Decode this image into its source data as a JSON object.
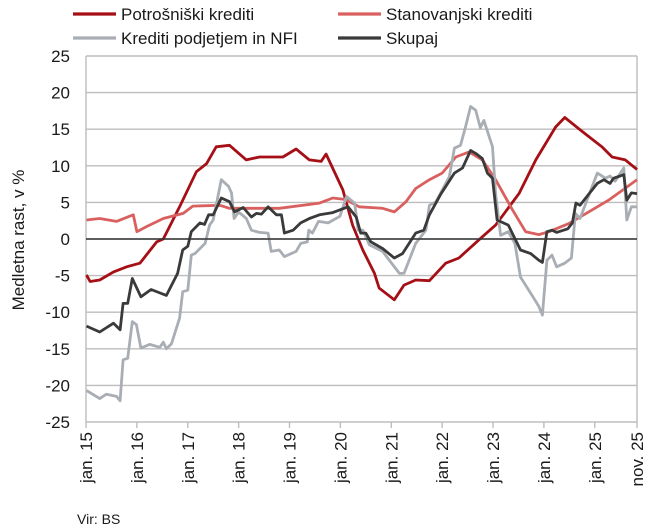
{
  "chart_data": {
    "type": "line",
    "ylabel": "Medletna rast, v %",
    "source": "Vir: BS",
    "ylim": [
      -25,
      25
    ],
    "yticks": [
      25,
      20,
      15,
      10,
      5,
      0,
      -5,
      -10,
      -15,
      -20,
      -25
    ],
    "ytick_labels": [
      "25",
      "20",
      "15",
      "10",
      "5",
      "0",
      "-5",
      "-10",
      "-15",
      "-20",
      "-25"
    ],
    "xlim": [
      2015.0,
      2025.83
    ],
    "xticks": [
      2015,
      2016,
      2017,
      2018,
      2019,
      2020,
      2021,
      2022,
      2023,
      2024,
      2025,
      2025.83
    ],
    "xtick_labels": [
      "jan. 15",
      "jan. 16",
      "jan. 17",
      "jan. 18",
      "jan. 19",
      "jan. 20",
      "jan. 21",
      "jan. 22",
      "jan. 23",
      "jan. 24",
      "jan. 25",
      "nov. 25"
    ],
    "grid": true,
    "legend_position": "top",
    "series": [
      {
        "name": "Potrošniški krediti",
        "color": "#a50f15",
        "points": [
          [
            2015.01,
            -4.9
          ],
          [
            2015.08,
            -5.8
          ],
          [
            2015.27,
            -5.6
          ],
          [
            2015.54,
            -4.5
          ],
          [
            2015.8,
            -3.8
          ],
          [
            2016.06,
            -3.3
          ],
          [
            2016.39,
            -0.4
          ],
          [
            2016.52,
            0
          ],
          [
            2016.84,
            4.4
          ],
          [
            2017.17,
            9.2
          ],
          [
            2017.37,
            10.3
          ],
          [
            2017.56,
            12.6
          ],
          [
            2017.82,
            12.8
          ],
          [
            2018.15,
            10.8
          ],
          [
            2018.41,
            11.2
          ],
          [
            2018.87,
            11.2
          ],
          [
            2019.13,
            12.3
          ],
          [
            2019.39,
            10.8
          ],
          [
            2019.62,
            10.6
          ],
          [
            2019.72,
            11.6
          ],
          [
            2020.05,
            6.7
          ],
          [
            2020.24,
            1.9
          ],
          [
            2020.44,
            -1.5
          ],
          [
            2020.67,
            -4.7
          ],
          [
            2020.76,
            -6.7
          ],
          [
            2021.06,
            -8.3
          ],
          [
            2021.25,
            -6.3
          ],
          [
            2021.48,
            -5.6
          ],
          [
            2021.75,
            -5.7
          ],
          [
            2022.07,
            -3.3
          ],
          [
            2022.33,
            -2.6
          ],
          [
            2022.79,
            0.3
          ],
          [
            2023.05,
            1.9
          ],
          [
            2023.51,
            6.2
          ],
          [
            2023.84,
            10.8
          ],
          [
            2024.23,
            15.3
          ],
          [
            2024.41,
            16.6
          ],
          [
            2024.75,
            14.7
          ],
          [
            2025.14,
            12.6
          ],
          [
            2025.34,
            11.2
          ],
          [
            2025.6,
            10.8
          ],
          [
            2025.83,
            9.5
          ]
        ]
      },
      {
        "name": "Stanovanjski krediti",
        "color": "#d9605f",
        "points": [
          [
            2015.01,
            2.6
          ],
          [
            2015.27,
            2.8
          ],
          [
            2015.6,
            2.4
          ],
          [
            2015.93,
            3.3
          ],
          [
            2016.0,
            1.0
          ],
          [
            2016.19,
            1.7
          ],
          [
            2016.52,
            2.8
          ],
          [
            2016.91,
            3.5
          ],
          [
            2017.1,
            4.5
          ],
          [
            2017.63,
            4.6
          ],
          [
            2017.82,
            4.2
          ],
          [
            2018.8,
            4.2
          ],
          [
            2019.59,
            4.9
          ],
          [
            2019.85,
            5.6
          ],
          [
            2020.1,
            5.4
          ],
          [
            2020.37,
            4.4
          ],
          [
            2020.83,
            4.2
          ],
          [
            2021.06,
            3.7
          ],
          [
            2021.29,
            5.1
          ],
          [
            2021.48,
            6.9
          ],
          [
            2021.75,
            8.1
          ],
          [
            2022.0,
            9.0
          ],
          [
            2022.27,
            11.2
          ],
          [
            2022.53,
            11.9
          ],
          [
            2022.79,
            10.8
          ],
          [
            2023.05,
            8.1
          ],
          [
            2023.38,
            4.0
          ],
          [
            2023.64,
            1.0
          ],
          [
            2023.9,
            0.6
          ],
          [
            2024.1,
            1.0
          ],
          [
            2024.49,
            2.1
          ],
          [
            2024.88,
            3.7
          ],
          [
            2025.27,
            5.3
          ],
          [
            2025.83,
            8.1
          ]
        ]
      },
      {
        "name": "Krediti podjetjem in NFI",
        "color": "#a9aeb4",
        "points": [
          [
            2015.01,
            -20.7
          ],
          [
            2015.27,
            -21.8
          ],
          [
            2015.4,
            -21.2
          ],
          [
            2015.6,
            -21.5
          ],
          [
            2015.67,
            -22.1
          ],
          [
            2015.73,
            -16.5
          ],
          [
            2015.82,
            -16.3
          ],
          [
            2015.91,
            -11.3
          ],
          [
            2015.99,
            -11.7
          ],
          [
            2016.08,
            -14.9
          ],
          [
            2016.25,
            -14.4
          ],
          [
            2016.45,
            -14.8
          ],
          [
            2016.52,
            -14.1
          ],
          [
            2016.58,
            -15.0
          ],
          [
            2016.68,
            -14.3
          ],
          [
            2016.84,
            -10.8
          ],
          [
            2016.9,
            -7.2
          ],
          [
            2017.0,
            -7.0
          ],
          [
            2017.07,
            -2.2
          ],
          [
            2017.14,
            -2.0
          ],
          [
            2017.34,
            -0.6
          ],
          [
            2017.43,
            1.9
          ],
          [
            2017.5,
            2.6
          ],
          [
            2017.66,
            8.1
          ],
          [
            2017.8,
            7.2
          ],
          [
            2017.86,
            6.3
          ],
          [
            2017.91,
            2.8
          ],
          [
            2018.0,
            3.7
          ],
          [
            2018.15,
            2.8
          ],
          [
            2018.25,
            1.2
          ],
          [
            2018.41,
            0.9
          ],
          [
            2018.58,
            0.8
          ],
          [
            2018.64,
            -1.7
          ],
          [
            2018.8,
            -1.5
          ],
          [
            2018.9,
            -2.4
          ],
          [
            2019.13,
            -1.7
          ],
          [
            2019.22,
            -0.6
          ],
          [
            2019.35,
            -0.4
          ],
          [
            2019.38,
            1.2
          ],
          [
            2019.45,
            0.8
          ],
          [
            2019.57,
            2.4
          ],
          [
            2019.76,
            2.2
          ],
          [
            2019.99,
            3.1
          ],
          [
            2020.12,
            5.8
          ],
          [
            2020.28,
            4.9
          ],
          [
            2020.35,
            1.2
          ],
          [
            2020.44,
            1.2
          ],
          [
            2020.57,
            -0.8
          ],
          [
            2020.83,
            -1.7
          ],
          [
            2021.16,
            -4.7
          ],
          [
            2021.25,
            -4.7
          ],
          [
            2021.48,
            -0.6
          ],
          [
            2021.68,
            1.2
          ],
          [
            2021.75,
            4.6
          ],
          [
            2021.88,
            5.1
          ],
          [
            2022.14,
            8.5
          ],
          [
            2022.24,
            12.4
          ],
          [
            2022.36,
            12.8
          ],
          [
            2022.46,
            15.3
          ],
          [
            2022.56,
            18.1
          ],
          [
            2022.66,
            17.6
          ],
          [
            2022.75,
            15.2
          ],
          [
            2022.82,
            16.2
          ],
          [
            2022.99,
            12.6
          ],
          [
            2023.05,
            6.2
          ],
          [
            2023.15,
            0.5
          ],
          [
            2023.3,
            1.0
          ],
          [
            2023.43,
            -0.6
          ],
          [
            2023.54,
            -5.2
          ],
          [
            2023.74,
            -7.4
          ],
          [
            2023.9,
            -9.2
          ],
          [
            2023.97,
            -10.4
          ],
          [
            2024.06,
            -2.9
          ],
          [
            2024.16,
            -2.2
          ],
          [
            2024.25,
            -3.8
          ],
          [
            2024.41,
            -3.3
          ],
          [
            2024.54,
            -2.6
          ],
          [
            2024.62,
            3.5
          ],
          [
            2024.71,
            2.8
          ],
          [
            2025.05,
            9.0
          ],
          [
            2025.21,
            8.3
          ],
          [
            2025.3,
            8.6
          ],
          [
            2025.4,
            7.9
          ],
          [
            2025.57,
            9.7
          ],
          [
            2025.63,
            2.6
          ],
          [
            2025.72,
            4.4
          ],
          [
            2025.83,
            4.4
          ]
        ]
      },
      {
        "name": "Skupaj",
        "color": "#3a3a3a",
        "points": [
          [
            2015.01,
            -11.9
          ],
          [
            2015.27,
            -12.7
          ],
          [
            2015.54,
            -11.5
          ],
          [
            2015.67,
            -12.4
          ],
          [
            2015.73,
            -8.8
          ],
          [
            2015.82,
            -8.8
          ],
          [
            2015.91,
            -5.4
          ],
          [
            2016.08,
            -7.9
          ],
          [
            2016.28,
            -6.9
          ],
          [
            2016.58,
            -7.7
          ],
          [
            2016.8,
            -4.7
          ],
          [
            2016.9,
            -1.5
          ],
          [
            2017.0,
            -1.0
          ],
          [
            2017.07,
            1.0
          ],
          [
            2017.24,
            2.2
          ],
          [
            2017.33,
            2.0
          ],
          [
            2017.41,
            3.3
          ],
          [
            2017.5,
            3.3
          ],
          [
            2017.66,
            5.6
          ],
          [
            2017.82,
            5.1
          ],
          [
            2017.92,
            3.7
          ],
          [
            2018.09,
            4.3
          ],
          [
            2018.25,
            3.0
          ],
          [
            2018.35,
            3.5
          ],
          [
            2018.45,
            3.4
          ],
          [
            2018.58,
            4.4
          ],
          [
            2018.74,
            3.3
          ],
          [
            2018.84,
            3.3
          ],
          [
            2018.9,
            0.8
          ],
          [
            2019.07,
            1.2
          ],
          [
            2019.22,
            2.2
          ],
          [
            2019.39,
            2.8
          ],
          [
            2019.59,
            3.3
          ],
          [
            2019.85,
            3.6
          ],
          [
            2020.15,
            4.4
          ],
          [
            2020.31,
            3.0
          ],
          [
            2020.4,
            0.8
          ],
          [
            2020.5,
            0.8
          ],
          [
            2020.6,
            -0.4
          ],
          [
            2020.83,
            -1.3
          ],
          [
            2021.06,
            -2.6
          ],
          [
            2021.22,
            -2.0
          ],
          [
            2021.48,
            0.8
          ],
          [
            2021.64,
            1.2
          ],
          [
            2021.75,
            3.3
          ],
          [
            2021.98,
            6.2
          ],
          [
            2022.24,
            9.0
          ],
          [
            2022.4,
            9.7
          ],
          [
            2022.56,
            12.1
          ],
          [
            2022.66,
            11.7
          ],
          [
            2022.79,
            11.0
          ],
          [
            2022.89,
            9.0
          ],
          [
            2022.99,
            8.3
          ],
          [
            2023.08,
            2.6
          ],
          [
            2023.3,
            1.9
          ],
          [
            2023.54,
            -1.5
          ],
          [
            2023.74,
            -2.0
          ],
          [
            2023.9,
            -2.9
          ],
          [
            2023.97,
            -3.2
          ],
          [
            2024.06,
            1.0
          ],
          [
            2024.16,
            1.2
          ],
          [
            2024.25,
            0.9
          ],
          [
            2024.47,
            1.4
          ],
          [
            2024.56,
            2.2
          ],
          [
            2024.63,
            4.9
          ],
          [
            2024.71,
            4.6
          ],
          [
            2025.05,
            7.6
          ],
          [
            2025.18,
            8.1
          ],
          [
            2025.3,
            7.6
          ],
          [
            2025.37,
            8.3
          ],
          [
            2025.5,
            8.6
          ],
          [
            2025.57,
            8.8
          ],
          [
            2025.63,
            5.3
          ],
          [
            2025.72,
            6.3
          ],
          [
            2025.83,
            6.2
          ]
        ]
      }
    ]
  }
}
